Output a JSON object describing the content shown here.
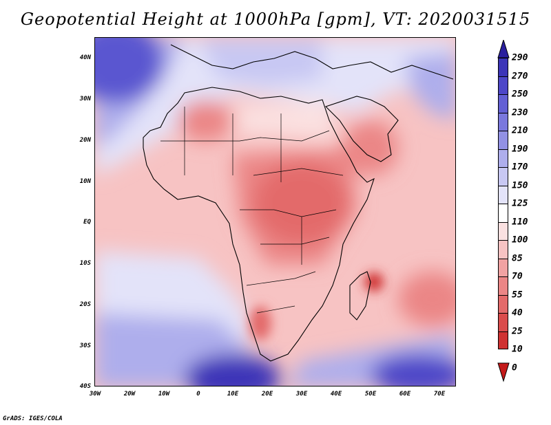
{
  "title": "Geopotential Height at 1000hPa [gpm], VT: 2020031515",
  "map": {
    "lat_labels": [
      "40N",
      "30N",
      "20N",
      "10N",
      "EQ",
      "10S",
      "20S",
      "30S",
      "40S"
    ],
    "lon_labels": [
      "30W",
      "20W",
      "10W",
      "0",
      "10E",
      "20E",
      "30E",
      "40E",
      "50E",
      "60E",
      "70E"
    ]
  },
  "colorbar": {
    "levels": [
      "290",
      "270",
      "250",
      "230",
      "210",
      "190",
      "170",
      "150",
      "125",
      "110",
      "100",
      "85",
      "70",
      "55",
      "40",
      "25",
      "10",
      "0"
    ],
    "colors": [
      "#2a1f9e",
      "#3c35b8",
      "#4d47c8",
      "#6360d4",
      "#7a78dd",
      "#9291e4",
      "#aeaeec",
      "#c8c8f3",
      "#e3e3f9",
      "#ffffff",
      "#fbe1e1",
      "#f7c3c3",
      "#f1a2a2",
      "#eb8686",
      "#e36a6a",
      "#da4c4c",
      "#cf3232",
      "#c41a1a"
    ]
  },
  "footer": "GrADS: IGES/COLA"
}
